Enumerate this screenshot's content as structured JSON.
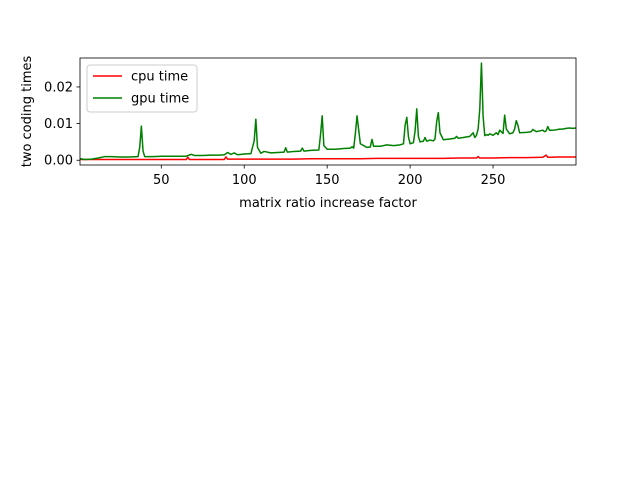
{
  "chart_data": {
    "type": "line",
    "title": "",
    "xlabel": "matrix ratio increase factor",
    "ylabel": "two coding times",
    "xlim": [
      1,
      300
    ],
    "ylim": [
      -0.0013,
      0.0279
    ],
    "xticks": [
      50,
      100,
      150,
      200,
      250
    ],
    "xtick_labels": [
      "50",
      "100",
      "150",
      "200",
      "250"
    ],
    "yticks": [
      0.0,
      0.01,
      0.02
    ],
    "ytick_labels": [
      "0.00",
      "0.01",
      "0.02"
    ],
    "grid": false,
    "legend_position": "top-left",
    "series": [
      {
        "name": "cpu time",
        "color": "#ff0000",
        "x": [
          1,
          5,
          10,
          20,
          30,
          40,
          50,
          60,
          65,
          66,
          67,
          80,
          88,
          89,
          90,
          100,
          110,
          120,
          130,
          140,
          150,
          160,
          170,
          180,
          190,
          200,
          210,
          220,
          230,
          240,
          241,
          242,
          250,
          260,
          270,
          280,
          282,
          283,
          284,
          290,
          300
        ],
        "y": [
          0.0002,
          0.0002,
          0.0002,
          0.0002,
          0.0002,
          0.0002,
          0.0002,
          0.0002,
          0.0002,
          0.0008,
          0.0002,
          0.0002,
          0.0002,
          0.0009,
          0.0003,
          0.0003,
          0.0003,
          0.0003,
          0.0003,
          0.0004,
          0.0004,
          0.0004,
          0.0004,
          0.0005,
          0.0005,
          0.0005,
          0.0005,
          0.0005,
          0.0006,
          0.0006,
          0.001,
          0.0006,
          0.0006,
          0.0007,
          0.0007,
          0.0008,
          0.0014,
          0.0008,
          0.0008,
          0.0009,
          0.0009
        ]
      },
      {
        "name": "gpu time",
        "color": "#008000",
        "x": [
          1,
          4,
          8,
          12,
          16,
          20,
          25,
          30,
          36,
          37,
          38,
          39,
          40,
          45,
          50,
          55,
          60,
          65,
          68,
          70,
          75,
          80,
          85,
          88,
          90,
          92,
          94,
          96,
          100,
          104,
          106,
          107,
          108,
          110,
          112,
          116,
          120,
          124,
          125,
          126,
          130,
          134,
          135,
          136,
          140,
          145,
          146,
          147,
          148,
          150,
          155,
          160,
          164,
          165,
          166,
          167,
          168,
          170,
          174,
          176,
          177,
          178,
          182,
          186,
          190,
          194,
          196,
          197,
          198,
          199,
          200,
          202,
          203,
          204,
          205,
          206,
          208,
          209,
          210,
          212,
          214,
          215,
          216,
          217,
          218,
          220,
          224,
          227,
          228,
          229,
          232,
          236,
          238,
          239,
          240,
          241,
          242,
          243,
          244,
          245,
          246,
          247,
          248,
          250,
          252,
          253,
          254,
          256,
          257,
          258,
          260,
          262,
          263,
          264,
          265,
          266,
          270,
          272,
          273,
          274,
          276,
          278,
          280,
          281,
          282,
          283,
          284,
          286,
          288,
          290,
          292,
          294,
          296,
          298,
          300
        ],
        "y": [
          0.0004,
          0.0002,
          0.0003,
          0.0006,
          0.001,
          0.001,
          0.0009,
          0.0009,
          0.001,
          0.0035,
          0.0093,
          0.0025,
          0.001,
          0.001,
          0.0011,
          0.0011,
          0.0011,
          0.0011,
          0.0016,
          0.0013,
          0.0013,
          0.0014,
          0.0014,
          0.0015,
          0.0021,
          0.0016,
          0.002,
          0.0015,
          0.0017,
          0.0018,
          0.0053,
          0.0112,
          0.0035,
          0.0019,
          0.0024,
          0.002,
          0.0021,
          0.0022,
          0.0034,
          0.0022,
          0.0024,
          0.0025,
          0.0033,
          0.0025,
          0.0027,
          0.0028,
          0.007,
          0.0121,
          0.004,
          0.003,
          0.003,
          0.0032,
          0.0033,
          0.0037,
          0.0033,
          0.0073,
          0.0121,
          0.0045,
          0.0035,
          0.0036,
          0.0057,
          0.0038,
          0.0038,
          0.0042,
          0.004,
          0.0042,
          0.0045,
          0.0096,
          0.0117,
          0.0064,
          0.0045,
          0.0048,
          0.008,
          0.014,
          0.0065,
          0.005,
          0.0052,
          0.0062,
          0.0052,
          0.0055,
          0.0053,
          0.0058,
          0.0105,
          0.013,
          0.0075,
          0.0056,
          0.0058,
          0.006,
          0.0065,
          0.006,
          0.0062,
          0.0065,
          0.0075,
          0.0062,
          0.0068,
          0.0085,
          0.014,
          0.0265,
          0.012,
          0.0067,
          0.007,
          0.0068,
          0.0072,
          0.0068,
          0.0075,
          0.007,
          0.0082,
          0.0073,
          0.0123,
          0.0085,
          0.0072,
          0.0075,
          0.0085,
          0.0108,
          0.0095,
          0.0075,
          0.0076,
          0.0077,
          0.0078,
          0.0084,
          0.0078,
          0.008,
          0.0082,
          0.0078,
          0.008,
          0.0092,
          0.0082,
          0.0082,
          0.0083,
          0.0085,
          0.0085,
          0.0087,
          0.0088,
          0.0087,
          0.0088
        ]
      }
    ]
  }
}
